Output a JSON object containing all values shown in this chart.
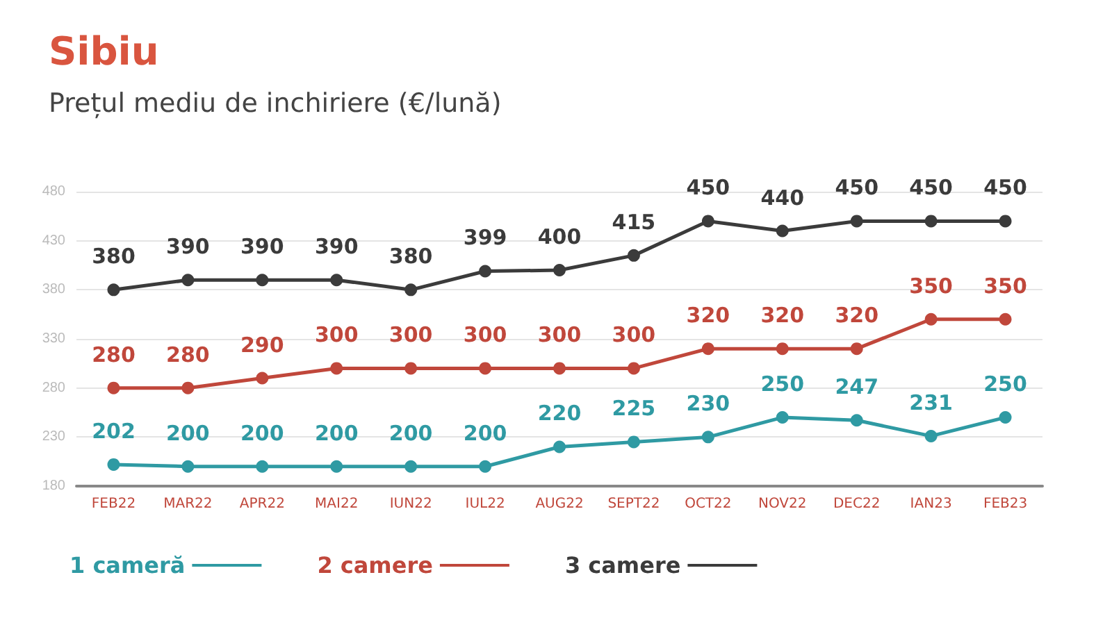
{
  "chart_data": {
    "type": "line",
    "title": "Sibiu",
    "subtitle": "Prețul mediu de inchiriere (€/lună)",
    "categories": [
      "FEB22",
      "MAR22",
      "APR22",
      "MAI22",
      "IUN22",
      "IUL22",
      "AUG22",
      "SEPT22",
      "OCT22",
      "NOV22",
      "DEC22",
      "IAN23",
      "FEB23"
    ],
    "series": [
      {
        "name": "1 cameră",
        "color": "#2f9aa3",
        "values": [
          202,
          200,
          200,
          200,
          200,
          200,
          220,
          225,
          230,
          250,
          247,
          231,
          250
        ]
      },
      {
        "name": "2 camere",
        "color": "#c0473b",
        "values": [
          280,
          280,
          290,
          300,
          300,
          300,
          300,
          300,
          320,
          320,
          320,
          350,
          350
        ]
      },
      {
        "name": "3 camere",
        "color": "#3b3b3b",
        "values": [
          380,
          390,
          390,
          390,
          380,
          399,
          400,
          415,
          450,
          440,
          450,
          450,
          450
        ]
      }
    ],
    "ylim": [
      180,
      480
    ],
    "yticks": [
      180,
      230,
      280,
      330,
      380,
      430,
      480
    ],
    "grid": "y",
    "legend": "bottom left",
    "marker": "circle",
    "line_style": "solid",
    "data_labels": true
  }
}
